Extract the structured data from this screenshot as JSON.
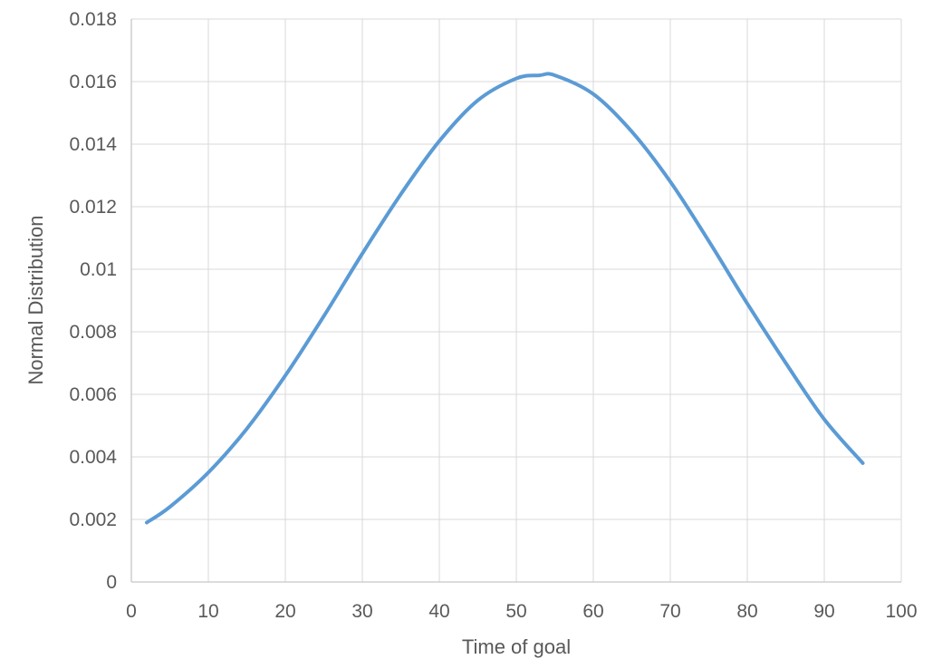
{
  "chart_data": {
    "type": "line",
    "title": "",
    "xlabel": "Time of goal",
    "ylabel": "Normal Distribution",
    "xlim": [
      0,
      100
    ],
    "ylim": [
      0,
      0.018
    ],
    "grid": true,
    "legend": "none",
    "x_tick_values": [
      0,
      10,
      20,
      30,
      40,
      50,
      60,
      70,
      80,
      90,
      100
    ],
    "x_tick_labels": [
      "0",
      "10",
      "20",
      "30",
      "40",
      "50",
      "60",
      "70",
      "80",
      "90",
      "100"
    ],
    "y_tick_values": [
      0,
      0.002,
      0.004,
      0.006,
      0.008,
      0.01,
      0.012,
      0.014,
      0.016,
      0.018
    ],
    "y_tick_labels": [
      "0",
      "0.002",
      "0.004",
      "0.006",
      "0.008",
      "0.01",
      "0.012",
      "0.014",
      "0.016",
      "0.018"
    ],
    "series": [
      {
        "name": "Normal Distribution",
        "color": "#5B9BD5",
        "line_width": 4,
        "x": [
          2,
          5,
          10,
          15,
          20,
          25,
          30,
          35,
          40,
          45,
          50,
          53,
          55,
          60,
          65,
          70,
          75,
          80,
          85,
          90,
          95
        ],
        "y": [
          0.0019,
          0.0024,
          0.0035,
          0.0049,
          0.0066,
          0.0085,
          0.0105,
          0.0124,
          0.0141,
          0.0154,
          0.0161,
          0.0162,
          0.0162,
          0.0156,
          0.0144,
          0.0128,
          0.0109,
          0.0089,
          0.007,
          0.0052,
          0.0038
        ]
      }
    ],
    "notes": "Smooth bell-shaped curve; peak at about (53, 0.0162); left endpoint about (2, 0.0019); right endpoint about (95, 0.0037)"
  },
  "styles": {
    "accent_line": "#5B9BD5",
    "gridline": "#D9D9D9",
    "axis_line": "#C6C6C6",
    "label_text": "#595959",
    "background": "#FFFFFF"
  }
}
